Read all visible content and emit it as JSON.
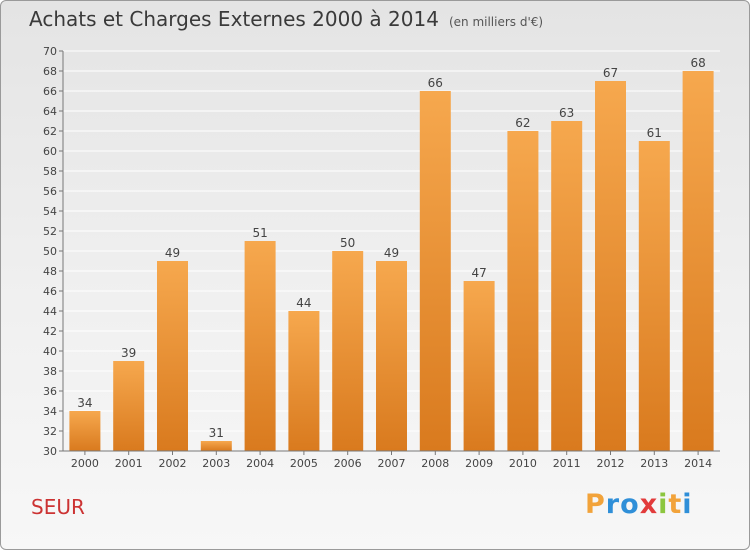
{
  "title": "Achats et Charges Externes 2000 à 2014",
  "unit": "(en milliers d'€)",
  "footer_name": "SEUR",
  "logo_text": "Proxiti",
  "chart_data": {
    "type": "bar",
    "categories": [
      "2000",
      "2001",
      "2002",
      "2003",
      "2004",
      "2005",
      "2006",
      "2007",
      "2008",
      "2009",
      "2010",
      "2011",
      "2012",
      "2013",
      "2014"
    ],
    "values": [
      34,
      39,
      49,
      31,
      51,
      44,
      50,
      49,
      66,
      47,
      62,
      63,
      67,
      61,
      68
    ],
    "ylim": [
      30,
      70
    ],
    "yticks": [
      30,
      32,
      34,
      36,
      38,
      40,
      42,
      44,
      46,
      48,
      50,
      52,
      54,
      56,
      58,
      60,
      62,
      64,
      66,
      68,
      70
    ],
    "grid": true,
    "colors": {
      "bar_light": "#f6a84e",
      "bar_dark": "#d97a1e",
      "grid": "#ffffff",
      "axis": "#777777"
    }
  }
}
